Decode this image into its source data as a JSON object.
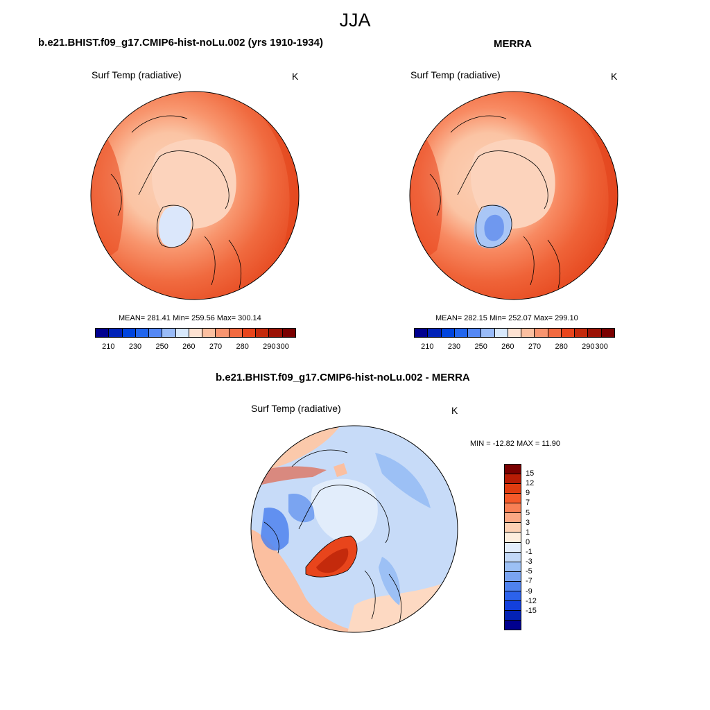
{
  "title": "JJA",
  "panels": [
    {
      "title": "b.e21.BHIST.f09_g17.CMIP6-hist-noLu.002 (yrs 1910-1934)",
      "variable": "Surf Temp (radiative)",
      "units": "K",
      "stats": "MEAN= 281.41  Min= 259.56  Max= 300.14"
    },
    {
      "title": "MERRA",
      "variable": "Surf Temp (radiative)",
      "units": "K",
      "stats": "MEAN= 282.15  Min= 252.07  Max= 299.10"
    },
    {
      "title": "b.e21.BHIST.f09_g17.CMIP6-hist-noLu.002 - MERRA",
      "variable": "Surf Temp (radiative)",
      "units": "K",
      "stats": "MIN = -12.82 MAX =  11.90"
    }
  ],
  "temp_colorbar": {
    "colors": [
      "#00008f",
      "#0022b8",
      "#0044dd",
      "#2266ee",
      "#5588f5",
      "#99bbf8",
      "#d8e8fb",
      "#fde2d2",
      "#fbbfa0",
      "#f89570",
      "#f26a40",
      "#e8451c",
      "#c42a0c",
      "#9b1205",
      "#7a0000"
    ],
    "tick_labels": [
      "210",
      "230",
      "250",
      "260",
      "270",
      "280",
      "290",
      "300"
    ]
  },
  "diff_colorbar": {
    "colors": [
      "#7a0000",
      "#b71c05",
      "#e03c10",
      "#f55a2a",
      "#f88055",
      "#fba884",
      "#fdd1b4",
      "#fdeede",
      "#e2edfb",
      "#c2d8f7",
      "#9cc0f5",
      "#7aa4f1",
      "#4f82ee",
      "#2c62ec",
      "#1340dd",
      "#0422b4",
      "#00008f"
    ],
    "tick_labels": [
      "15",
      "12",
      "9",
      "7",
      "5",
      "3",
      "1",
      "0",
      "-1",
      "-3",
      "-5",
      "-7",
      "-9",
      "-12",
      "-15"
    ]
  }
}
